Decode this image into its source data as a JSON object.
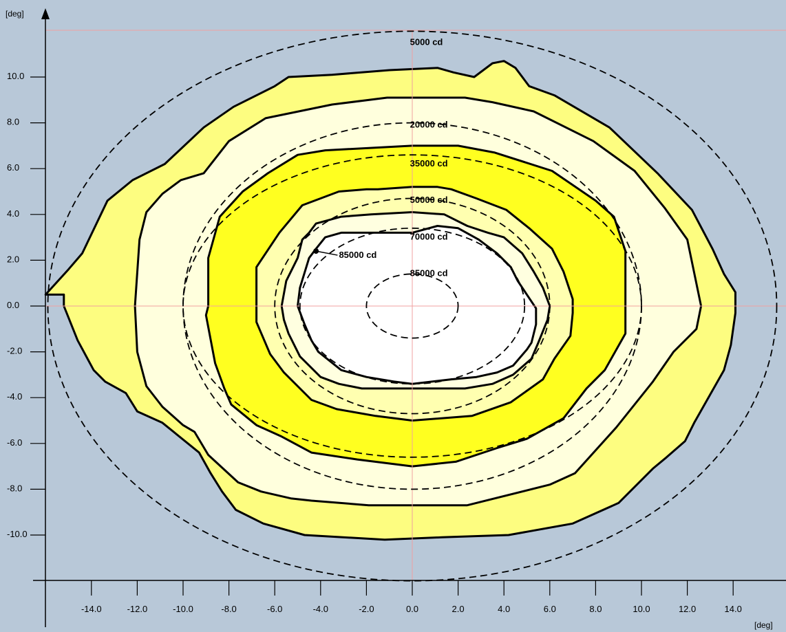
{
  "chart_data": {
    "type": "contour",
    "title": "",
    "x_unit": "[deg]",
    "y_unit": "[deg]",
    "xlim": [
      -16,
      16
    ],
    "ylim": [
      -12.5,
      12.5
    ],
    "x_ticks": [
      {
        "value": -14,
        "label": "-14.0"
      },
      {
        "value": -12,
        "label": "-12.0"
      },
      {
        "value": -10,
        "label": "-10.0"
      },
      {
        "value": -8,
        "label": "-8.0"
      },
      {
        "value": -6,
        "label": "-6.0"
      },
      {
        "value": -4,
        "label": "-4.0"
      },
      {
        "value": -2,
        "label": "-2.0"
      },
      {
        "value": 0,
        "label": "0.0"
      },
      {
        "value": 2,
        "label": "2.0"
      },
      {
        "value": 4,
        "label": "4.0"
      },
      {
        "value": 6,
        "label": "6.0"
      },
      {
        "value": 8,
        "label": "8.0"
      },
      {
        "value": 10,
        "label": "10.0"
      },
      {
        "value": 12,
        "label": "12.0"
      },
      {
        "value": 14,
        "label": "14.0"
      }
    ],
    "y_ticks": [
      {
        "value": 10,
        "label": "10.0"
      },
      {
        "value": 8,
        "label": "8.0"
      },
      {
        "value": 6,
        "label": "6.0"
      },
      {
        "value": 4,
        "label": "4.0"
      },
      {
        "value": 2,
        "label": "2.0"
      },
      {
        "value": 0,
        "label": "0.0"
      },
      {
        "value": -2,
        "label": "-2.0"
      },
      {
        "value": -4,
        "label": "-4.0"
      },
      {
        "value": -6,
        "label": "-6.0"
      },
      {
        "value": -8,
        "label": "-8.0"
      },
      {
        "value": -10,
        "label": "-10.0"
      }
    ],
    "colors": {
      "background": "#b8c8d8",
      "band_5000": "#fdfd80",
      "band_20000": "#ffffdd",
      "band_35000": "#ffff20",
      "band_50000": "#ffffb0",
      "band_70000": "#ffffe0",
      "band_85000": "#ffffff",
      "gridline": "#f0a0a0",
      "line": "#000000"
    },
    "measured_isolines": [
      {
        "level": 5000,
        "fill": "#fdfd80",
        "points": [
          [
            -16,
            0.5
          ],
          [
            -15,
            1.6
          ],
          [
            -14.4,
            2.3
          ],
          [
            -13.3,
            4.6
          ],
          [
            -12.2,
            5.5
          ],
          [
            -10.8,
            6.2
          ],
          [
            -9.1,
            7.8
          ],
          [
            -7.8,
            8.7
          ],
          [
            -6,
            9.6
          ],
          [
            -5.4,
            10
          ],
          [
            -3.5,
            10.1
          ],
          [
            -1,
            10.3
          ],
          [
            1.1,
            10.4
          ],
          [
            1.8,
            10.2
          ],
          [
            2.7,
            10
          ],
          [
            3.5,
            10.6
          ],
          [
            4,
            10.7
          ],
          [
            4.5,
            10.4
          ],
          [
            5.1,
            9.6
          ],
          [
            6.2,
            9.2
          ],
          [
            8.6,
            7.8
          ],
          [
            10.7,
            5.8
          ],
          [
            12.2,
            4.2
          ],
          [
            13.1,
            2.5
          ],
          [
            13.6,
            1.4
          ],
          [
            14.1,
            0.6
          ],
          [
            14.1,
            -0.3
          ],
          [
            13.9,
            -1.7
          ],
          [
            13.6,
            -2.8
          ],
          [
            12.3,
            -5.1
          ],
          [
            11.9,
            -5.9
          ],
          [
            11.1,
            -6.6
          ],
          [
            10.5,
            -7.1
          ],
          [
            9,
            -8.6
          ],
          [
            7,
            -9.5
          ],
          [
            4.2,
            -10
          ],
          [
            1.3,
            -10.1
          ],
          [
            -1.2,
            -10.2
          ],
          [
            -4.7,
            -10
          ],
          [
            -6.5,
            -9.5
          ],
          [
            -7.7,
            -8.9
          ],
          [
            -8.3,
            -8.1
          ],
          [
            -8.8,
            -7.3
          ],
          [
            -9.3,
            -6.4
          ],
          [
            -10.9,
            -5.1
          ],
          [
            -12,
            -4.6
          ],
          [
            -12.5,
            -3.8
          ],
          [
            -13.4,
            -3.3
          ],
          [
            -13.9,
            -2.8
          ],
          [
            -14.6,
            -1.5
          ],
          [
            -15.2,
            0
          ],
          [
            -15.2,
            0.5
          ]
        ]
      },
      {
        "level": 20000,
        "fill": "#ffffdd",
        "points": [
          [
            -12.1,
            0
          ],
          [
            -11.9,
            2.9
          ],
          [
            -11.6,
            4.1
          ],
          [
            -10.9,
            4.9
          ],
          [
            -10.1,
            5.5
          ],
          [
            -9.1,
            5.8
          ],
          [
            -8,
            7.2
          ],
          [
            -6.4,
            8.2
          ],
          [
            -3.5,
            8.8
          ],
          [
            -1.1,
            9.1
          ],
          [
            2.3,
            9.1
          ],
          [
            3.5,
            8.9
          ],
          [
            5.3,
            8.5
          ],
          [
            7.9,
            7.2
          ],
          [
            9.7,
            5.9
          ],
          [
            11,
            4.3
          ],
          [
            12,
            2.9
          ],
          [
            12.6,
            0
          ],
          [
            12.4,
            -1
          ],
          [
            11.4,
            -2
          ],
          [
            10.5,
            -3.3
          ],
          [
            8.9,
            -5.3
          ],
          [
            7.1,
            -7.3
          ],
          [
            6,
            -7.8
          ],
          [
            2.4,
            -8.7
          ],
          [
            -1.9,
            -8.7
          ],
          [
            -4.4,
            -8.5
          ],
          [
            -5.3,
            -8.4
          ],
          [
            -6.6,
            -8.1
          ],
          [
            -7.6,
            -7.7
          ],
          [
            -8.9,
            -6.5
          ],
          [
            -9.5,
            -5.5
          ],
          [
            -10,
            -5.2
          ],
          [
            -10.9,
            -4.4
          ],
          [
            -11.6,
            -3.5
          ],
          [
            -12,
            -2
          ]
        ]
      },
      {
        "level": 35000,
        "fill": "#ffff20",
        "points": [
          [
            -8.9,
            0
          ],
          [
            -8.9,
            2.1
          ],
          [
            -8.4,
            3.9
          ],
          [
            -7.4,
            5
          ],
          [
            -6.3,
            5.8
          ],
          [
            -5,
            6.6
          ],
          [
            -3.8,
            6.8
          ],
          [
            0,
            7
          ],
          [
            2,
            7
          ],
          [
            3.6,
            6.7
          ],
          [
            6.1,
            5.9
          ],
          [
            8,
            4.6
          ],
          [
            8.8,
            3.9
          ],
          [
            9.3,
            2.4
          ],
          [
            9.3,
            0.7
          ],
          [
            9.3,
            0
          ],
          [
            9.3,
            -1.2
          ],
          [
            8.4,
            -2.8
          ],
          [
            7.6,
            -3.6
          ],
          [
            6.6,
            -4.9
          ],
          [
            5,
            -5.8
          ],
          [
            3.7,
            -6.2
          ],
          [
            1.9,
            -6.8
          ],
          [
            0,
            -7
          ],
          [
            -2.4,
            -6.7
          ],
          [
            -4.4,
            -6.4
          ],
          [
            -5.7,
            -5.7
          ],
          [
            -6.8,
            -5.2
          ],
          [
            -7.9,
            -4.3
          ],
          [
            -8.2,
            -3.6
          ],
          [
            -8.6,
            -2.5
          ],
          [
            -9,
            -0.4
          ]
        ]
      },
      {
        "level": 50000,
        "fill": "#ffffb0",
        "points": [
          [
            -6.8,
            0
          ],
          [
            -6.8,
            1.7
          ],
          [
            -5.8,
            3.2
          ],
          [
            -4.8,
            4.4
          ],
          [
            -3.2,
            5
          ],
          [
            -2,
            5.1
          ],
          [
            -1.5,
            5.1
          ],
          [
            0,
            5.2
          ],
          [
            1.1,
            5.2
          ],
          [
            1.7,
            5.1
          ],
          [
            2.8,
            4.7
          ],
          [
            4.1,
            4.2
          ],
          [
            5.1,
            3.4
          ],
          [
            6.1,
            2.5
          ],
          [
            6.6,
            1.5
          ],
          [
            7,
            0.3
          ],
          [
            7,
            -0.3
          ],
          [
            6.9,
            -1.3
          ],
          [
            6.2,
            -2.3
          ],
          [
            5.7,
            -3.2
          ],
          [
            4.3,
            -4.2
          ],
          [
            2.6,
            -4.8
          ],
          [
            0,
            -5
          ],
          [
            -1.6,
            -4.8
          ],
          [
            -3.3,
            -4.5
          ],
          [
            -4.4,
            -4.1
          ],
          [
            -5.6,
            -2.9
          ],
          [
            -6.2,
            -2.1
          ],
          [
            -6.8,
            -0.7
          ]
        ]
      },
      {
        "level": 70000,
        "fill": "#ffffe0",
        "points": [
          [
            -5.7,
            0
          ],
          [
            -5.5,
            1.1
          ],
          [
            -5,
            2.1
          ],
          [
            -4.8,
            2.9
          ],
          [
            -4.5,
            3.2
          ],
          [
            -4.2,
            3.6
          ],
          [
            -3.1,
            3.9
          ],
          [
            -1.8,
            4
          ],
          [
            0,
            4.1
          ],
          [
            1.4,
            4
          ],
          [
            2.4,
            3.5
          ],
          [
            3.3,
            3.2
          ],
          [
            4,
            3
          ],
          [
            4.8,
            2.3
          ],
          [
            5.3,
            1.5
          ],
          [
            5.7,
            0.8
          ],
          [
            6,
            0
          ],
          [
            5.9,
            -0.6
          ],
          [
            5.5,
            -1.6
          ],
          [
            5.2,
            -2.3
          ],
          [
            4.4,
            -3
          ],
          [
            3.5,
            -3.4
          ],
          [
            2.3,
            -3.6
          ],
          [
            0,
            -3.6
          ],
          [
            -2.2,
            -3.6
          ],
          [
            -3.2,
            -3.4
          ],
          [
            -4,
            -3.1
          ],
          [
            -4.9,
            -2.2
          ],
          [
            -5.4,
            -1.2
          ],
          [
            -5.6,
            -0.6
          ]
        ]
      },
      {
        "level": 85000,
        "fill": "#ffffff",
        "points": [
          [
            -5,
            0
          ],
          [
            -4.9,
            0.8
          ],
          [
            -4.5,
            2.1
          ],
          [
            -4.2,
            2.5
          ],
          [
            -3.8,
            3
          ],
          [
            -3.1,
            3.2
          ],
          [
            -2.5,
            3.2
          ],
          [
            -1.1,
            3.2
          ],
          [
            0,
            3.2
          ],
          [
            1.1,
            3.5
          ],
          [
            2,
            3.4
          ],
          [
            2.9,
            2.9
          ],
          [
            3.7,
            2.3
          ],
          [
            4.3,
            1.7
          ],
          [
            4.6,
            1.1
          ],
          [
            5,
            0.5
          ],
          [
            5.4,
            -0.1
          ],
          [
            5.4,
            -0.8
          ],
          [
            5.2,
            -1.6
          ],
          [
            5,
            -1.9
          ],
          [
            4.4,
            -2.6
          ],
          [
            3.7,
            -2.9
          ],
          [
            2.8,
            -3.1
          ],
          [
            1.7,
            -3.2
          ],
          [
            0,
            -3.4
          ],
          [
            -0.8,
            -3.3
          ],
          [
            -2,
            -3.1
          ],
          [
            -3.1,
            -2.8
          ],
          [
            -4.1,
            -2
          ],
          [
            -4.4,
            -1.5
          ],
          [
            -4.7,
            -0.8
          ]
        ]
      }
    ],
    "reference_ellipses": [
      {
        "level": 5000,
        "label": "5000 cd",
        "rx": 15.9,
        "ry": 12,
        "label_at": [
          -0.1,
          11.4
        ]
      },
      {
        "level": 20000,
        "label": "20000 cd",
        "rx": 10,
        "ry": 8,
        "label_at": [
          -0.1,
          7.8
        ]
      },
      {
        "level": 35000,
        "label": "35000 cd",
        "rx": 10,
        "ry": 6.6,
        "label_at": [
          -0.1,
          6.1
        ]
      },
      {
        "level": 50000,
        "label": "50000 cd",
        "rx": 6,
        "ry": 4.7,
        "label_at": [
          -0.1,
          4.5
        ]
      },
      {
        "level": 70000,
        "label": "70000 cd",
        "rx": 4.9,
        "ry": 3.4,
        "label_at": [
          -0.1,
          2.9
        ]
      },
      {
        "level": 85000,
        "label": "85000 cd",
        "rx": 2.0,
        "ry": 1.4,
        "label_at": [
          -0.1,
          1.3
        ]
      }
    ],
    "point_annotation": {
      "label": "85000 cd",
      "at": [
        -4.2,
        2.4
      ],
      "label_at": [
        -3.2,
        2.1
      ]
    }
  }
}
